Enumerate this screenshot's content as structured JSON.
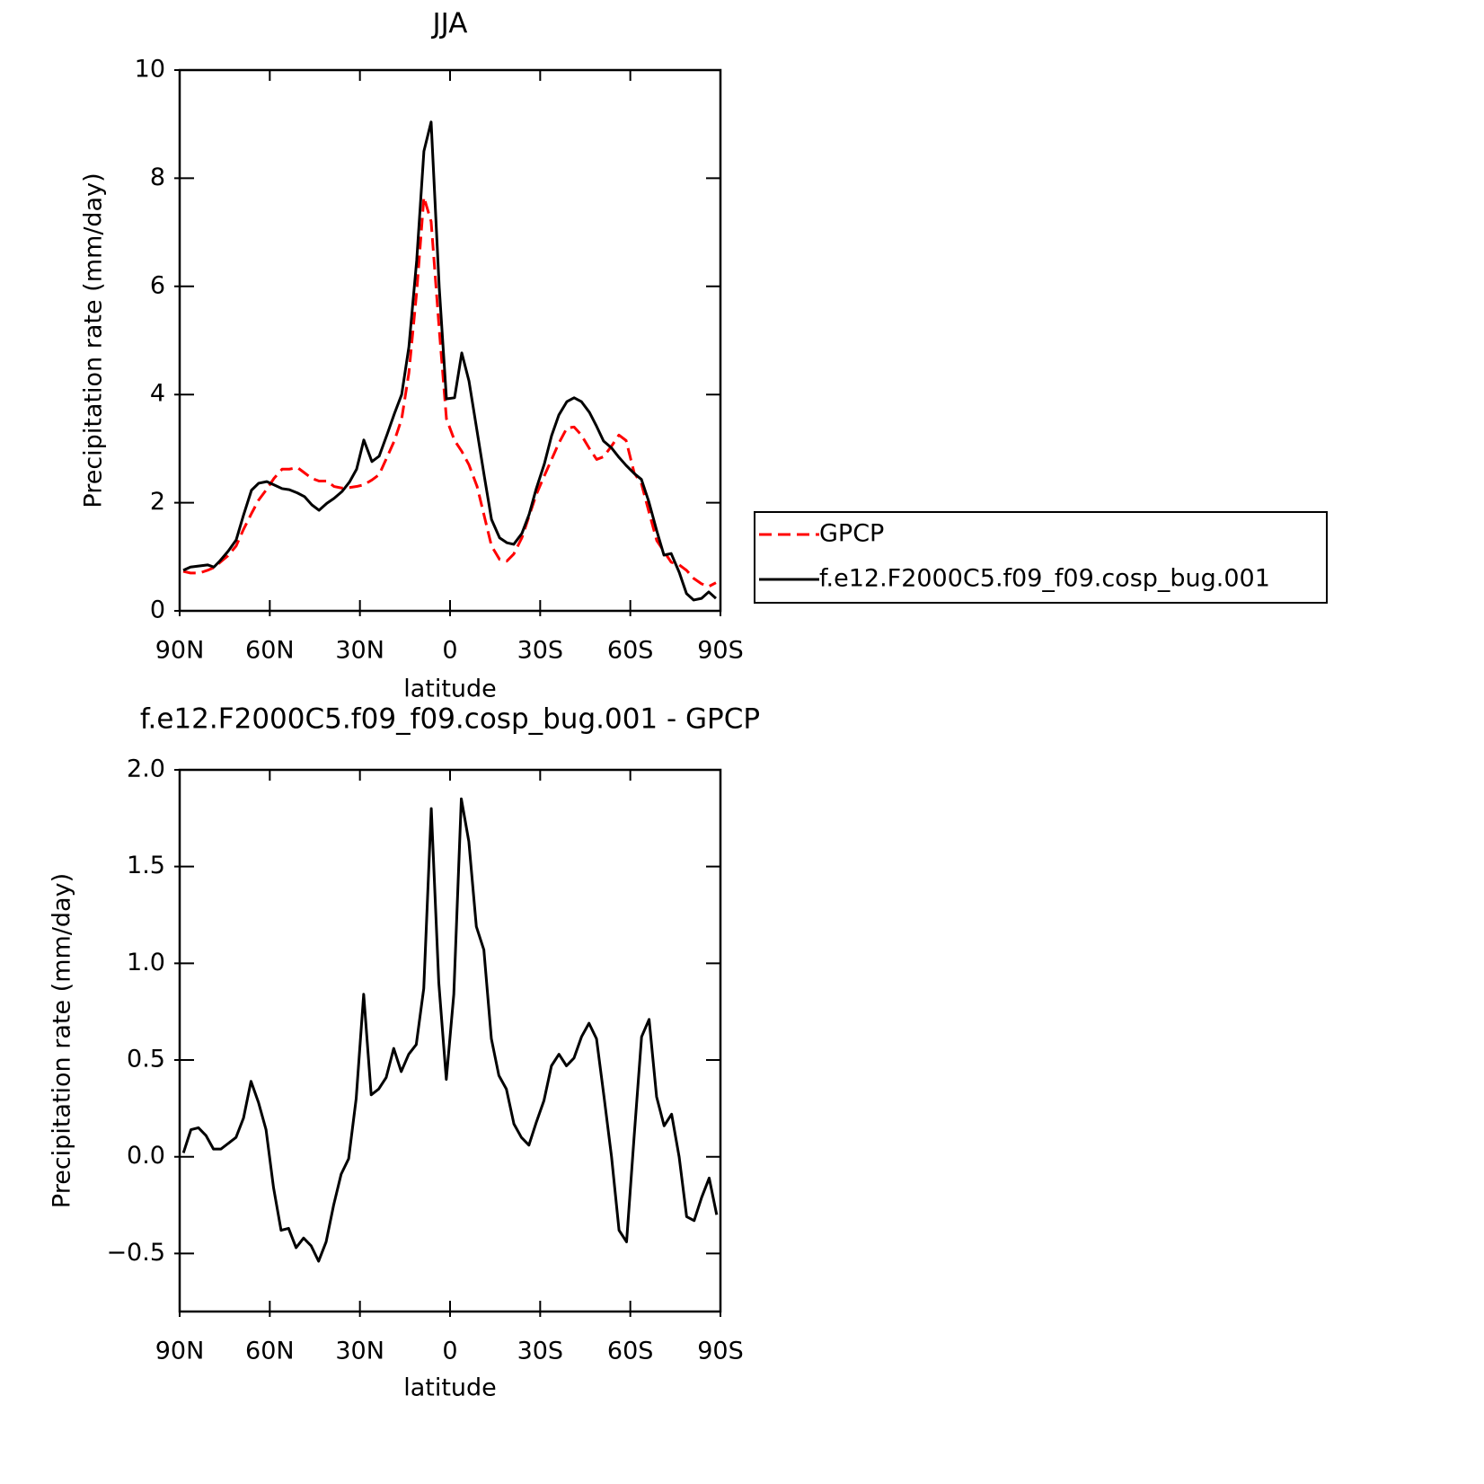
{
  "chart_data": [
    {
      "type": "line",
      "title": "JJA",
      "x_label": "latitude",
      "y_label": "Precipitation rate (mm/day)",
      "x": [
        88.8,
        86.4,
        83.4,
        80.7,
        78.6,
        76.5,
        73.9,
        71.2,
        68.8,
        66.1,
        63.7,
        61.0,
        58.6,
        55.9,
        53.5,
        50.8,
        48.4,
        46.0,
        43.6,
        41.0,
        38.6,
        35.9,
        33.5,
        31.1,
        28.7,
        26.0,
        23.6,
        20.9,
        18.5,
        16.1,
        13.7,
        11.1,
        8.7,
        6.3,
        3.6,
        1.2,
        -1.5,
        -3.9,
        -6.3,
        -9.0,
        -11.4,
        -13.8,
        -16.5,
        -18.9,
        -21.2,
        -23.9,
        -26.3,
        -28.7,
        -31.4,
        -33.8,
        -36.2,
        -38.9,
        -41.3,
        -43.7,
        -46.4,
        -48.8,
        -51.1,
        -53.8,
        -56.2,
        -58.6,
        -61.3,
        -63.7,
        -66.1,
        -68.8,
        -71.2,
        -73.6,
        -76.3,
        -78.7,
        -81.1,
        -83.7,
        -86.1,
        -88.5
      ],
      "series": [
        {
          "name": "GPCP",
          "color": "#ff0000",
          "line_style": "dashed",
          "values": [
            0.73,
            0.7,
            0.7,
            0.75,
            0.8,
            0.9,
            1.02,
            1.2,
            1.5,
            1.8,
            2.05,
            2.25,
            2.45,
            2.62,
            2.62,
            2.65,
            2.55,
            2.45,
            2.4,
            2.4,
            2.3,
            2.27,
            2.28,
            2.3,
            2.33,
            2.42,
            2.52,
            2.85,
            3.15,
            3.55,
            4.4,
            5.9,
            7.65,
            7.2,
            5.2,
            3.55,
            3.15,
            2.95,
            2.7,
            2.3,
            1.75,
            1.2,
            0.95,
            0.92,
            1.05,
            1.35,
            1.75,
            2.15,
            2.5,
            2.8,
            3.1,
            3.38,
            3.4,
            3.25,
            3.0,
            2.8,
            2.85,
            3.05,
            3.25,
            3.15,
            2.55,
            2.35,
            1.85,
            1.3,
            1.1,
            0.9,
            0.85,
            0.75,
            0.6,
            0.5,
            0.45,
            0.52
          ]
        },
        {
          "name": "f.e12.F2000C5.f09_f09.cosp_bug.001",
          "color": "#000000",
          "line_style": "solid",
          "values": [
            0.75,
            0.81,
            0.83,
            0.85,
            0.81,
            0.93,
            1.1,
            1.31,
            1.76,
            2.23,
            2.36,
            2.39,
            2.33,
            2.26,
            2.24,
            2.18,
            2.11,
            1.96,
            1.86,
            1.99,
            2.08,
            2.21,
            2.38,
            2.62,
            3.16,
            2.76,
            2.86,
            3.27,
            3.65,
            4.0,
            4.88,
            6.48,
            8.5,
            9.04,
            5.98,
            3.92,
            3.94,
            4.77,
            4.25,
            3.32,
            2.49,
            1.69,
            1.35,
            1.26,
            1.23,
            1.43,
            1.78,
            2.26,
            2.72,
            3.24,
            3.62,
            3.87,
            3.94,
            3.87,
            3.67,
            3.41,
            3.14,
            3.01,
            2.84,
            2.69,
            2.54,
            2.43,
            2.03,
            1.48,
            1.03,
            1.06,
            0.71,
            0.32,
            0.2,
            0.23,
            0.35,
            0.23
          ]
        }
      ],
      "xlim": [
        90,
        -90
      ],
      "ylim": [
        0,
        10
      ],
      "xticks": [
        {
          "value": 90,
          "label": "90N"
        },
        {
          "value": 60,
          "label": "60N"
        },
        {
          "value": 30,
          "label": "30N"
        },
        0,
        {
          "value": -30,
          "label": "30S"
        },
        {
          "value": -60,
          "label": "60S"
        },
        {
          "value": -90,
          "label": "90S"
        }
      ],
      "yticks": [
        0,
        2,
        4,
        6,
        8,
        10
      ],
      "legend": "right"
    },
    {
      "type": "line",
      "title": "f.e12.F2000C5.f09_f09.cosp_bug.001 - GPCP",
      "x_label": "latitude",
      "y_label": "Precipitation rate (mm/day)",
      "x": [
        88.75,
        86.25,
        83.75,
        81.25,
        78.75,
        76.25,
        73.75,
        71.25,
        68.75,
        66.25,
        63.75,
        61.25,
        58.75,
        56.25,
        53.75,
        51.25,
        48.75,
        46.25,
        43.75,
        41.25,
        38.75,
        36.25,
        33.75,
        31.25,
        28.75,
        26.25,
        23.75,
        21.25,
        18.75,
        16.25,
        13.75,
        11.25,
        8.75,
        6.25,
        3.75,
        1.25,
        -1.25,
        -3.75,
        -6.25,
        -8.75,
        -11.25,
        -13.75,
        -16.25,
        -18.75,
        -21.25,
        -23.75,
        -26.25,
        -28.75,
        -31.25,
        -33.75,
        -36.25,
        -38.75,
        -41.25,
        -43.75,
        -46.25,
        -48.75,
        -51.25,
        -53.75,
        -56.25,
        -58.75,
        -61.25,
        -63.75,
        -66.25,
        -68.75,
        -71.25,
        -73.75,
        -76.25,
        -78.75,
        -81.25,
        -83.75,
        -86.25,
        -88.75
      ],
      "color": "#000000",
      "values": [
        0.02,
        0.14,
        0.15,
        0.11,
        0.04,
        0.04,
        0.07,
        0.1,
        0.2,
        0.39,
        0.28,
        0.14,
        -0.16,
        -0.38,
        -0.37,
        -0.47,
        -0.42,
        -0.46,
        -0.54,
        -0.44,
        -0.25,
        -0.09,
        -0.01,
        0.3,
        0.84,
        0.32,
        0.35,
        0.41,
        0.56,
        0.44,
        0.53,
        0.58,
        0.87,
        1.8,
        0.9,
        0.4,
        0.84,
        1.85,
        1.63,
        1.19,
        1.07,
        0.61,
        0.42,
        0.35,
        0.17,
        0.1,
        0.06,
        0.18,
        0.29,
        0.47,
        0.53,
        0.47,
        0.51,
        0.62,
        0.69,
        0.61,
        0.31,
        0.0,
        -0.38,
        -0.44,
        0.1,
        0.62,
        0.71,
        0.31,
        0.16,
        0.22,
        0.0,
        -0.31,
        -0.33,
        -0.21,
        -0.11,
        -0.3
      ],
      "xlim": [
        90,
        -90
      ],
      "ylim": [
        -0.8,
        2.0
      ],
      "xticks": [
        {
          "value": 90,
          "label": "90N"
        },
        {
          "value": 60,
          "label": "60N"
        },
        {
          "value": 30,
          "label": "30N"
        },
        0,
        {
          "value": -30,
          "label": "30S"
        },
        {
          "value": -60,
          "label": "60S"
        },
        {
          "value": -90,
          "label": "90S"
        }
      ],
      "yticks": [
        {
          "value": 2.0,
          "label": "2.0"
        },
        1.5,
        {
          "value": 1.0,
          "label": "1.0"
        },
        0.5,
        {
          "value": 0.0,
          "label": "0.0"
        },
        {
          "value": -0.5,
          "label": "−0.5"
        }
      ]
    }
  ]
}
